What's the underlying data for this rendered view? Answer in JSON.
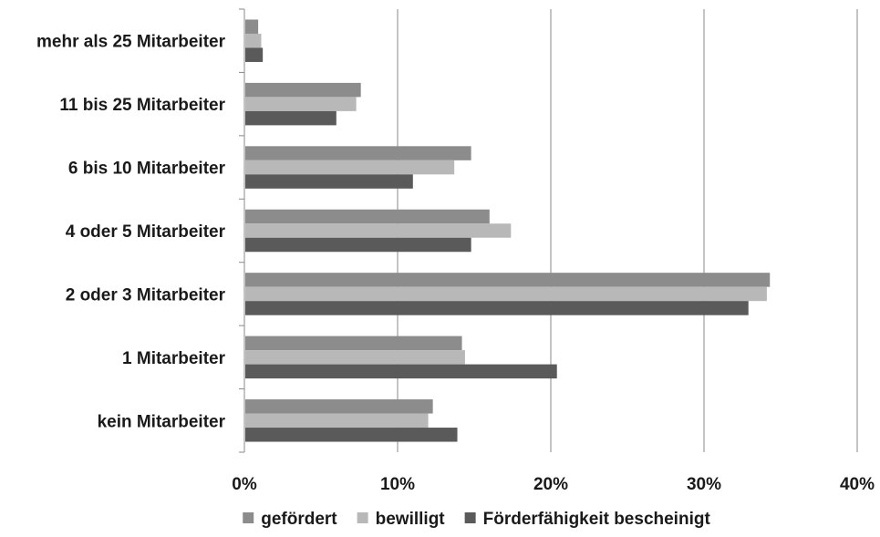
{
  "chart_data": {
    "type": "bar",
    "orientation": "horizontal",
    "title": "",
    "xlabel": "",
    "ylabel": "",
    "categories": [
      "mehr als 25 Mitarbeiter",
      "11 bis 25 Mitarbeiter",
      "6 bis 10 Mitarbeiter",
      "4 oder 5 Mitarbeiter",
      "2 oder 3 Mitarbeiter",
      "1 Mitarbeiter",
      "kein Mitarbeiter"
    ],
    "series": [
      {
        "name": "gefördert",
        "color": "#8c8c8c",
        "values": [
          0.9,
          7.6,
          14.8,
          16.0,
          34.3,
          14.2,
          12.3
        ]
      },
      {
        "name": "bewilligt",
        "color": "#b8b8b8",
        "values": [
          1.1,
          7.3,
          13.7,
          17.4,
          34.1,
          14.4,
          12.0
        ]
      },
      {
        "name": "Förderfähigkeit bescheinigt",
        "color": "#5a5a5a",
        "values": [
          1.2,
          6.0,
          11.0,
          14.8,
          32.9,
          20.4,
          13.9
        ]
      }
    ],
    "xlim": [
      0,
      40
    ],
    "xticks": [
      "0%",
      "10%",
      "20%",
      "30%",
      "40%"
    ],
    "grid": true,
    "legend_position": "bottom"
  }
}
